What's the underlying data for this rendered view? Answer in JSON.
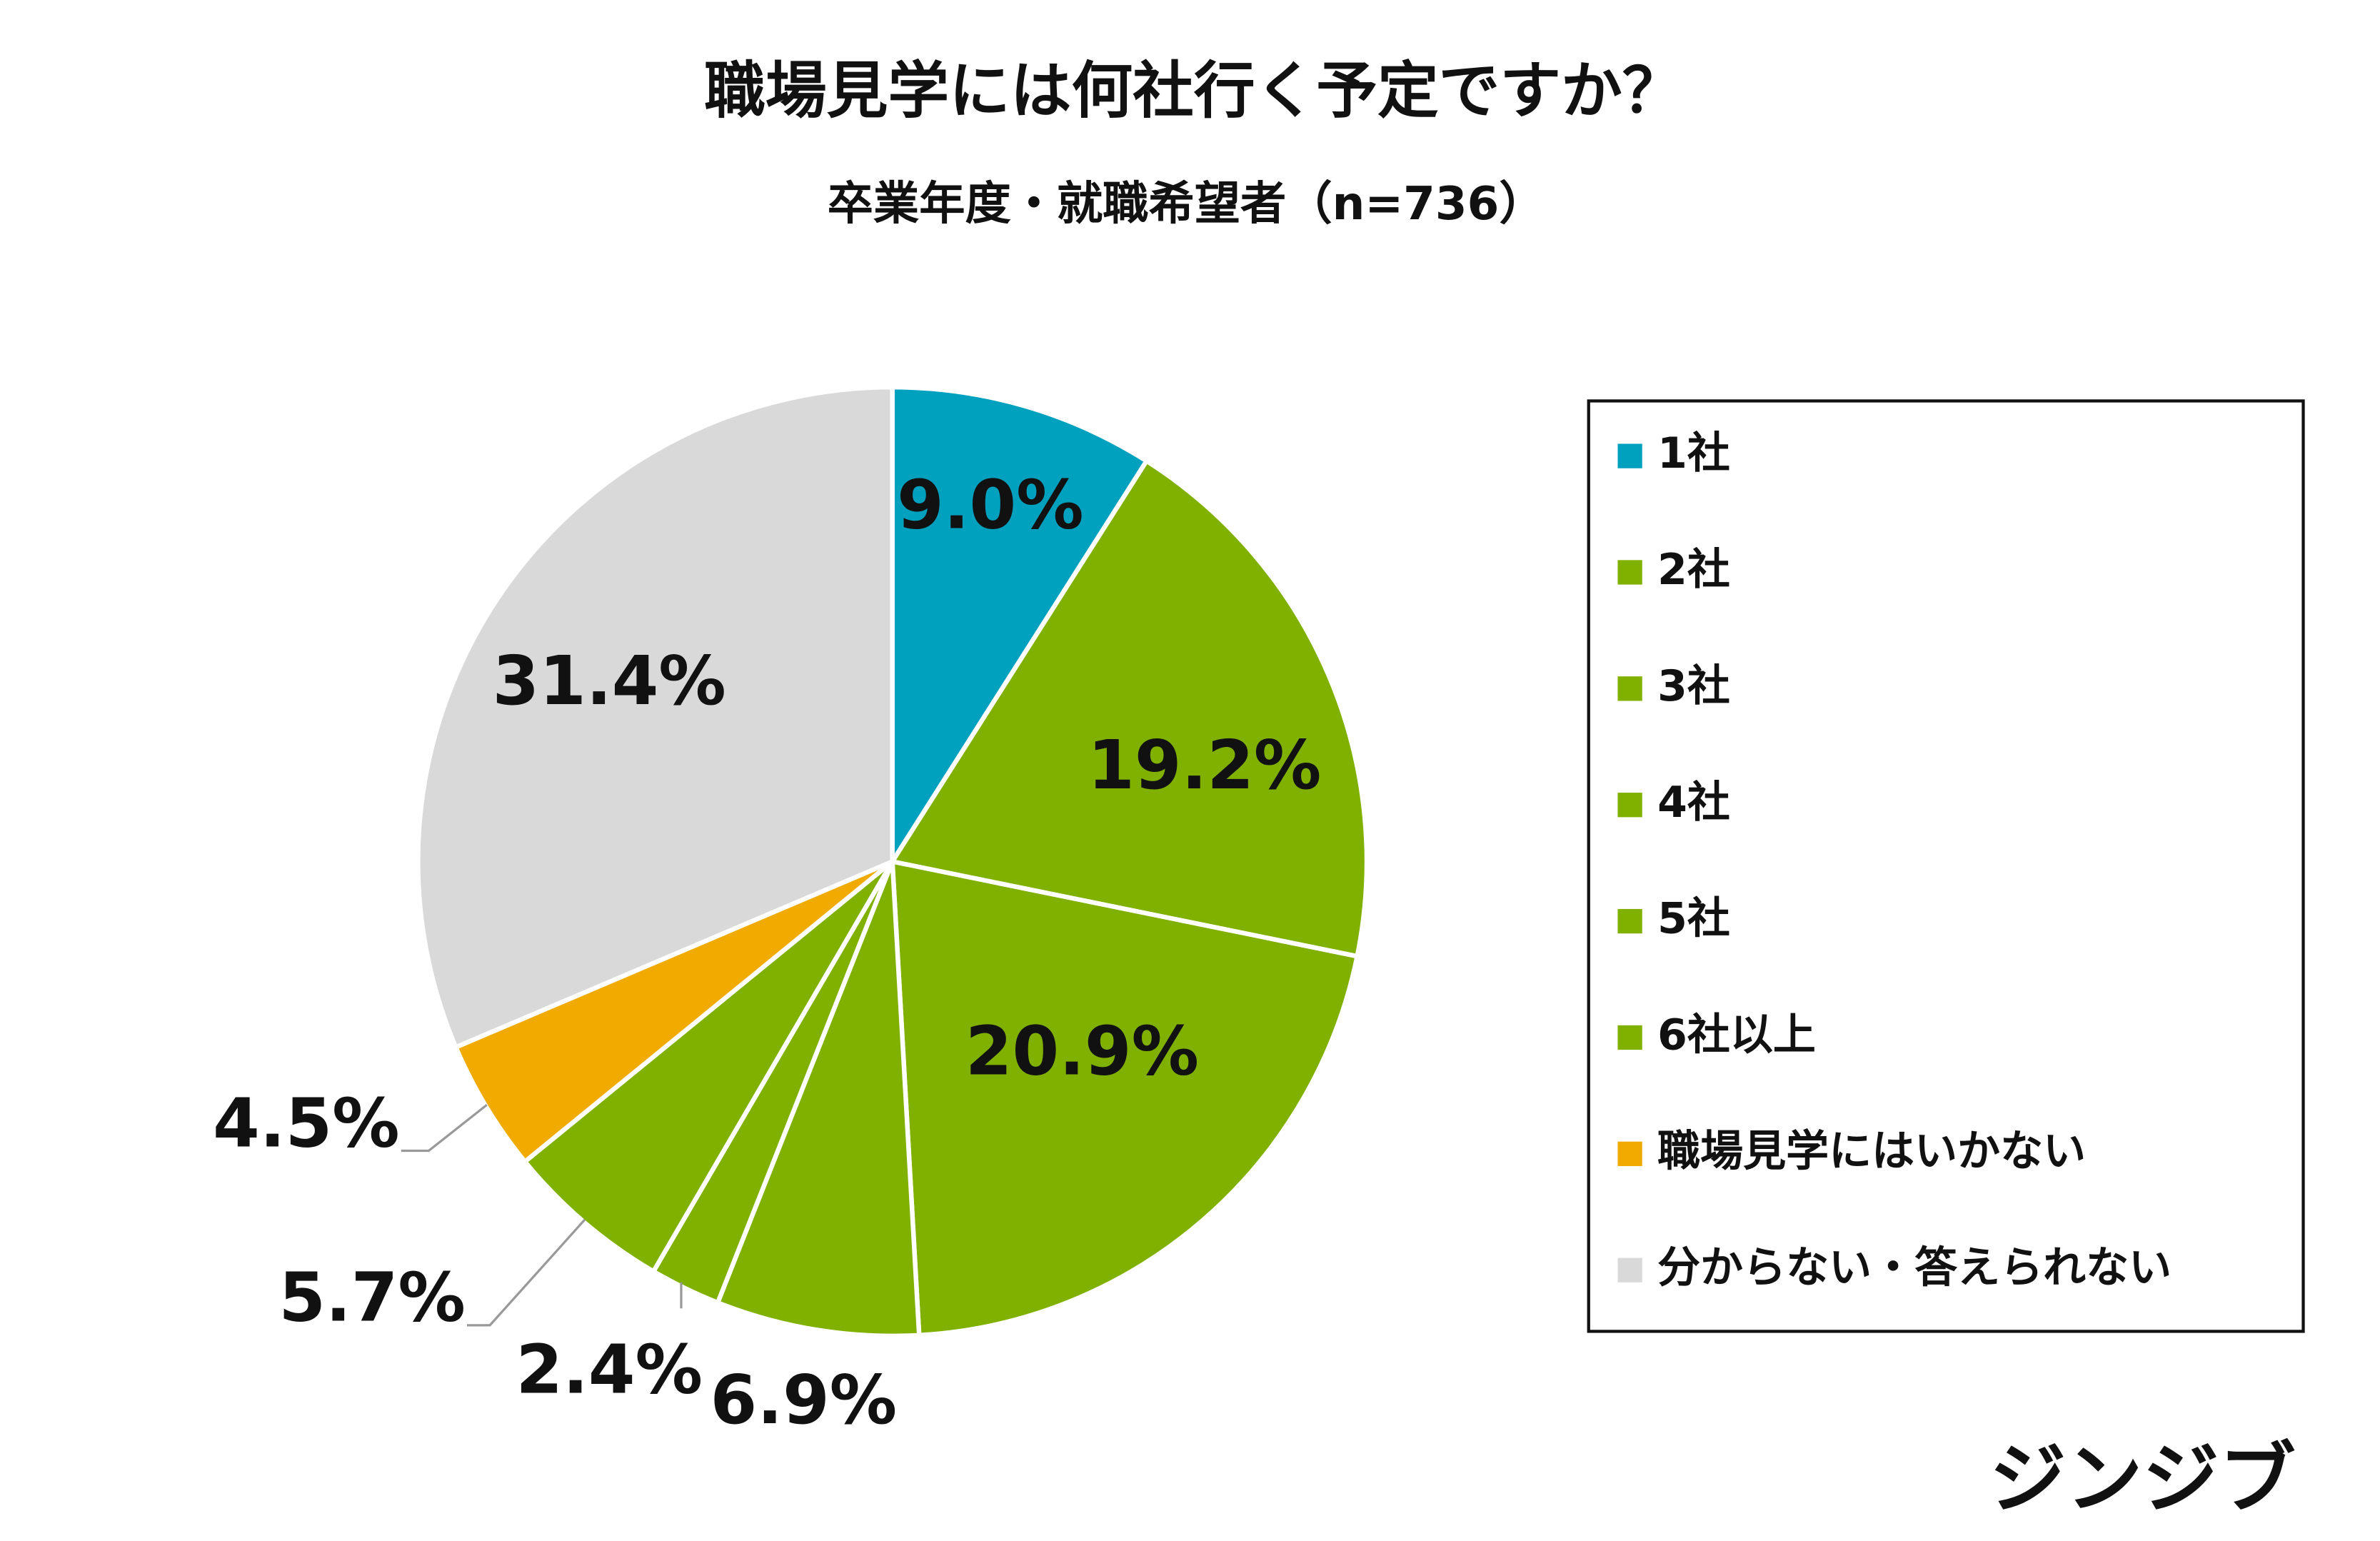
{
  "chart_data": {
    "type": "pie",
    "title": "職場見学には何社行く予定ですか？",
    "subtitle": "卒業年度・就職希望者（n=736）",
    "categories": [
      "1社",
      "2社",
      "3社",
      "4社",
      "5社",
      "6社以上",
      "職場見学にはいかない",
      "分からない・答えられない"
    ],
    "values": [
      9.0,
      19.2,
      20.9,
      6.9,
      2.4,
      5.7,
      4.5,
      31.4
    ],
    "value_labels": [
      "9.0%",
      "19.2%",
      "20.9%",
      "6.9%",
      "2.4%",
      "5.7%",
      "4.5%",
      "31.4%"
    ],
    "colors": [
      "#00a0bf",
      "#80b000",
      "#80b000",
      "#80b000",
      "#80b000",
      "#80b000",
      "#f0aa00",
      "#d9d9d9"
    ],
    "legend": "right",
    "brand": "ジンジブ"
  }
}
